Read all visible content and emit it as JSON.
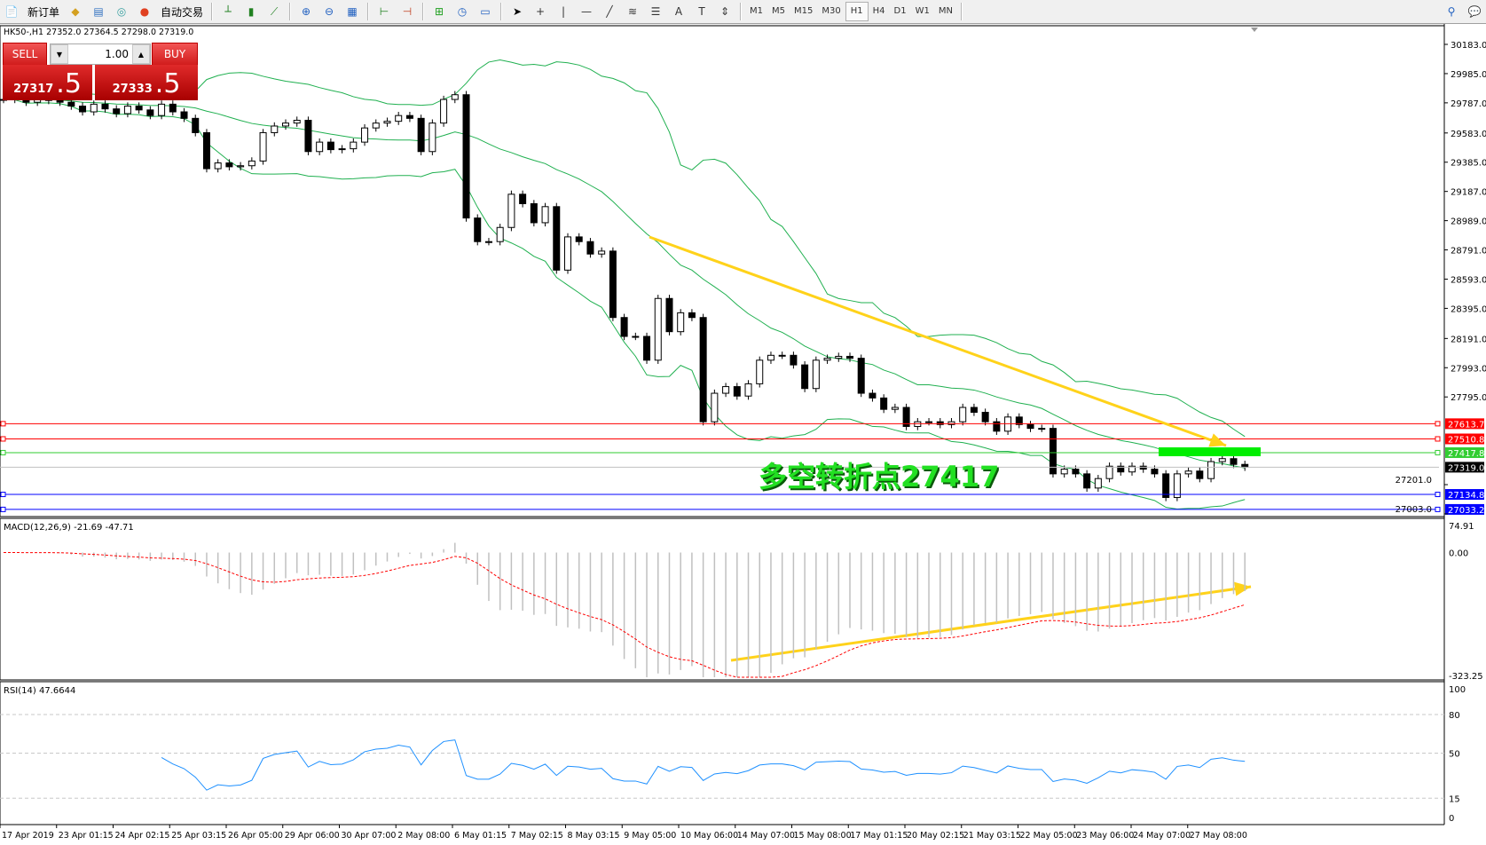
{
  "toolbar": {
    "new_order": "新订单",
    "auto_trading": "自动交易",
    "icons": [
      "new-order-icon",
      "metaeditor-icon",
      "navigator-icon",
      "signals-icon",
      "auto-trading-icon",
      "bar-chart-icon",
      "candlestick-icon",
      "line-chart-icon",
      "zoom-in-icon",
      "zoom-out-icon",
      "tile-windows-icon",
      "chart-shift-icon",
      "autoscroll-icon",
      "indicators-icon",
      "periods-icon",
      "templates-icon",
      "cursor-icon",
      "crosshair-icon",
      "vertical-line-icon",
      "horizontal-line-icon",
      "trendline-icon",
      "fibonacci-icon",
      "fibo-channel-icon",
      "text-icon",
      "text-label-icon",
      "arrows-icon",
      "search-icon",
      "chat-icon"
    ],
    "timeframes": [
      "M1",
      "M5",
      "M15",
      "M30",
      "H1",
      "H4",
      "D1",
      "W1",
      "MN"
    ],
    "active_timeframe": "H1"
  },
  "symbol_header": "HK50-,H1  27352.0 27364.5 27298.0 27319.0",
  "trade_panel": {
    "sell_label": "SELL",
    "buy_label": "BUY",
    "lot": "1.00",
    "sell_price_main": "27317",
    "sell_price_frac": ".5",
    "buy_price_main": "27333",
    "buy_price_frac": ".5"
  },
  "annotation": "多空转折点27417",
  "price_axis": [
    "30183.0",
    "29985.0",
    "29787.0",
    "29583.0",
    "29385.0",
    "29187.0",
    "28989.0",
    "28791.0",
    "28593.0",
    "28395.0",
    "28191.0",
    "27993.0",
    "27795.0",
    "27201.0",
    "27003.0"
  ],
  "levels": [
    {
      "label": "27613.7",
      "value": 27613.7,
      "color": "#ff0000"
    },
    {
      "label": "27510.8",
      "value": 27510.8,
      "color": "#ff0000"
    },
    {
      "label": "27417.8",
      "value": 27417.8,
      "color": "#32cd32"
    },
    {
      "label": "27319.0",
      "value": 27319.0,
      "color": "#c0c0c0",
      "tag": "#000000"
    },
    {
      "label": "27134.8",
      "value": 27134.8,
      "color": "#0000ff"
    },
    {
      "label": "27033.2",
      "value": 27033.2,
      "color": "#0000ff"
    }
  ],
  "macd": {
    "label": "MACD(12,26,9) -21.69 -47.71",
    "axis": [
      "74.91",
      "0.00",
      "-323.25"
    ],
    "max": 74.91,
    "min": -323.25
  },
  "rsi": {
    "label": "RSI(14) 47.6644",
    "axis": [
      "100",
      "80",
      "50",
      "15",
      "0"
    ],
    "levels": [
      80,
      50,
      15
    ]
  },
  "time_axis": [
    "17 Apr 2019",
    "23 Apr 01:15",
    "24 Apr 02:15",
    "25 Apr 03:15",
    "26 Apr 05:00",
    "29 Apr 06:00",
    "30 Apr 07:00",
    "2 May 08:00",
    "6 May 01:15",
    "7 May 02:15",
    "8 May 03:15",
    "9 May 05:00",
    "10 May 06:00",
    "14 May 07:00",
    "15 May 08:00",
    "17 May 01:15",
    "20 May 02:15",
    "21 May 03:15",
    "22 May 05:00",
    "23 May 06:00",
    "24 May 07:00",
    "27 May 08:00"
  ],
  "colors": {
    "bands": "#20b050",
    "arrow": "#ffd21a",
    "macd_signal": "#ff0000",
    "macd_hist": "#c0c0c0",
    "rsi": "#1e90ff"
  },
  "chart_data": {
    "type": "candlestick",
    "symbol": "HK50-",
    "timeframe": "H1",
    "ylim": [
      27003,
      30183
    ],
    "closes": [
      29810,
      29816,
      29791,
      29823,
      29803,
      29791,
      29765,
      29726,
      29778,
      29746,
      29714,
      29765,
      29739,
      29701,
      29778,
      29726,
      29682,
      29585,
      29341,
      29380,
      29354,
      29361,
      29393,
      29585,
      29630,
      29650,
      29669,
      29457,
      29521,
      29470,
      29476,
      29521,
      29617,
      29650,
      29662,
      29701,
      29682,
      29457,
      29650,
      29810,
      29842,
      29007,
      28847,
      28847,
      28943,
      29168,
      29104,
      28975,
      29084,
      28654,
      28879,
      28847,
      28763,
      28783,
      28333,
      28205,
      28205,
      28044,
      28462,
      28237,
      28365,
      28333,
      27627,
      27820,
      27865,
      27801,
      27884,
      28044,
      28077,
      28077,
      28012,
      27852,
      28044,
      28057,
      28070,
      28057,
      27820,
      27788,
      27711,
      27724,
      27595,
      27627,
      27627,
      27608,
      27627,
      27724,
      27691,
      27627,
      27563,
      27659,
      27608,
      27582,
      27582,
      27274,
      27306,
      27274,
      27178,
      27242,
      27326,
      27287,
      27326,
      27306,
      27274,
      27114,
      27274,
      27293,
      27242,
      27357,
      27377,
      27338,
      27319
    ],
    "overlays": [
      "Bollinger Bands"
    ],
    "indicators": [
      "MACD(12,26,9)",
      "RSI(14)"
    ]
  }
}
